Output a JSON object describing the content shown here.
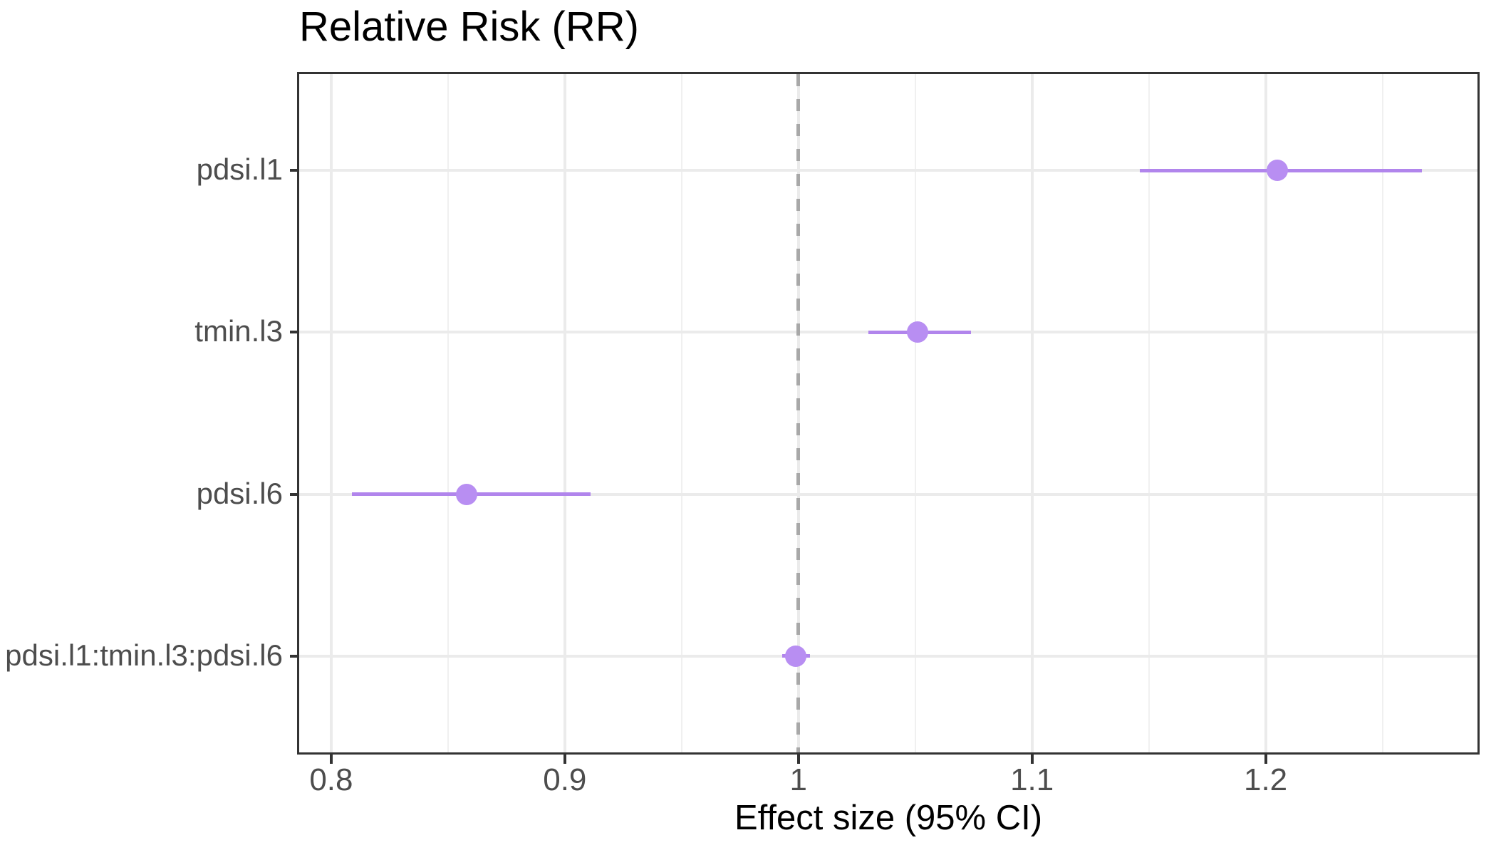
{
  "title": "Relative Risk (RR)",
  "chart_data": {
    "type": "scatter",
    "subtype": "forest-plot-horizontal",
    "title": "Relative Risk (RR)",
    "categories": [
      "pdsi.l1",
      "tmin.l3",
      "pdsi.l6",
      "pdsi.l1:tmin.l3:pdsi.l6"
    ],
    "points": [
      {
        "label": "pdsi.l1",
        "estimate": 1.205,
        "ci_low": 1.146,
        "ci_high": 1.267
      },
      {
        "label": "tmin.l3",
        "estimate": 1.051,
        "ci_low": 1.03,
        "ci_high": 1.074
      },
      {
        "label": "pdsi.l6",
        "estimate": 0.858,
        "ci_low": 0.809,
        "ci_high": 0.911
      },
      {
        "label": "pdsi.l1:tmin.l3:pdsi.l6",
        "estimate": 0.999,
        "ci_low": 0.993,
        "ci_high": 1.005
      }
    ],
    "reference_line_x": 1,
    "x_axis": {
      "title": "Effect size (95% CI)",
      "tick_values": [
        0.8,
        0.9,
        1,
        1.1,
        1.2
      ],
      "tick_labels": [
        "0.8",
        "0.9",
        "1",
        "1.1",
        "1.2"
      ],
      "minor_tick_values": [
        0.85,
        0.95,
        1.05,
        1.15,
        1.25
      ],
      "range": [
        0.786,
        1.291
      ]
    },
    "y_axis": {
      "title": ""
    },
    "grid": true,
    "legend": false
  },
  "colors": {
    "point": "#B88EF2",
    "ci_line": "#B185EC",
    "reference_line": "#A8A8A8",
    "grid_major": "#EBEBEB",
    "grid_minor": "#F0F0F0",
    "panel_border": "#333333",
    "tick_mark": "#333333",
    "tick_label": "#4D4D4D",
    "axis_title_text": "#000000",
    "title_text": "#000000",
    "panel_background": "#FFFFFF"
  }
}
